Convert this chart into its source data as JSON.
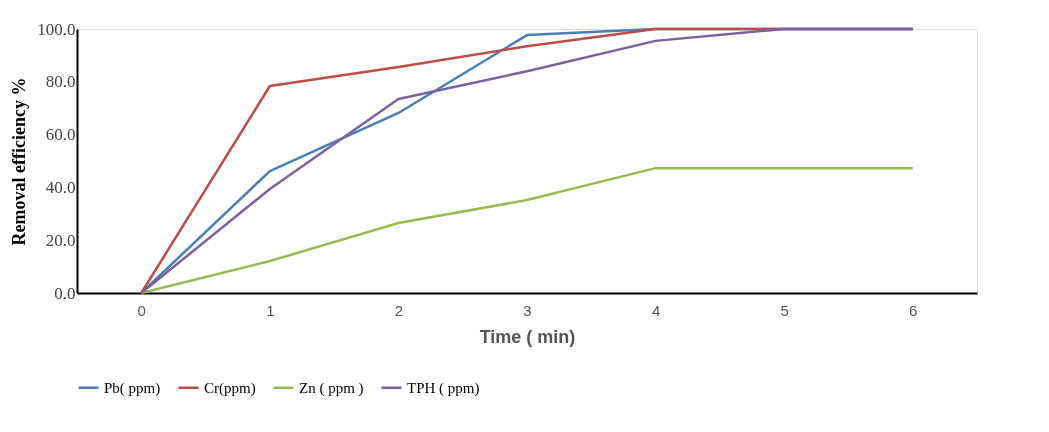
{
  "chart_data": {
    "type": "line",
    "xlabel": "Time ( min)",
    "ylabel": "Removal efficiency %",
    "categories": [
      "0",
      "1",
      "2",
      "3",
      "4",
      "5",
      "6"
    ],
    "series": [
      {
        "name": "Pb( ppm)",
        "color": "#4a7ebb",
        "values": [
          0,
          46.2,
          68.2,
          97.7,
          100,
          100,
          100
        ]
      },
      {
        "name": "Cr(ppm)",
        "color": "#be4b48",
        "values": [
          0,
          78.4,
          85.6,
          93.5,
          100,
          100,
          100
        ]
      },
      {
        "name": "Zn ( ppm )",
        "color": "#98b954",
        "values": [
          0,
          12.1,
          26.5,
          35.2,
          47.3,
          47.3,
          47.3
        ]
      },
      {
        "name": "TPH ( ppm)",
        "color": "#7d60a0",
        "values": [
          0,
          39.4,
          73.5,
          84,
          95.5,
          100,
          100
        ]
      }
    ],
    "ylim": [
      0,
      100
    ],
    "yticks": [
      {
        "value": 0,
        "label": "0.0"
      },
      {
        "value": 20,
        "label": "20.0"
      },
      {
        "value": 40,
        "label": "40.0"
      },
      {
        "value": 60,
        "label": "60.0"
      },
      {
        "value": 80,
        "label": "80.0"
      },
      {
        "value": 100,
        "label": "100.0"
      }
    ],
    "grid": false,
    "legend": "bottom",
    "marker": "none",
    "line_style": "solid"
  }
}
